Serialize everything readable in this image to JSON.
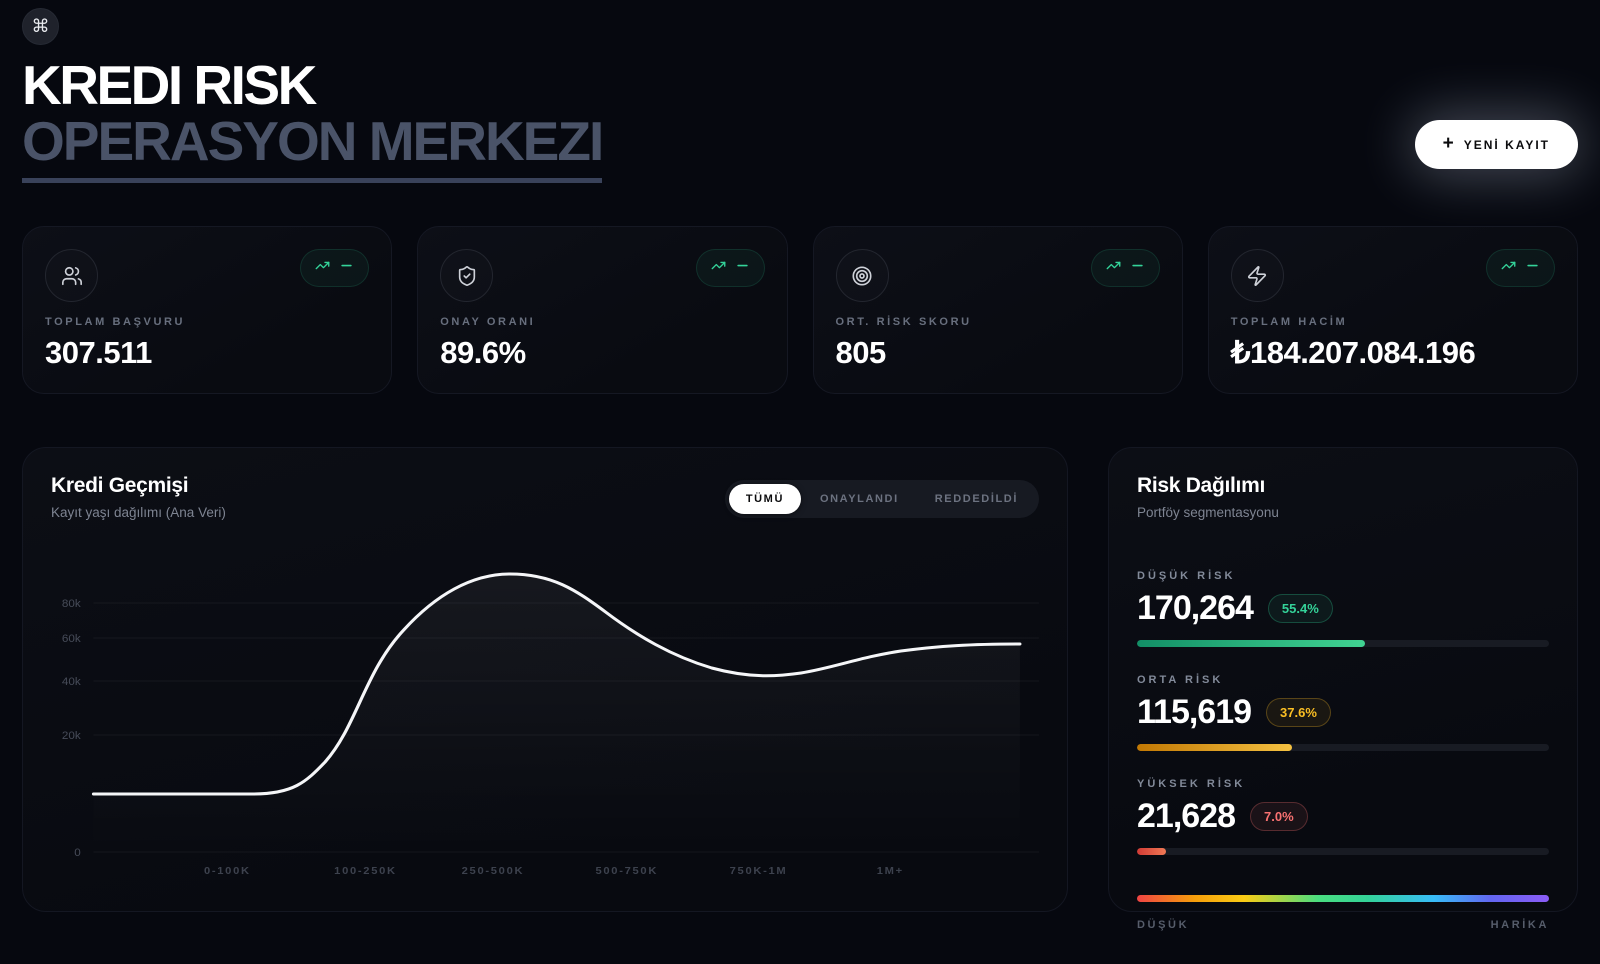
{
  "header": {
    "command_icon": "⌘",
    "title_line1": "KREDI RISK",
    "title_line2": "OPERASYON MERKEZI",
    "new_record": {
      "plus": "+",
      "label": "YENİ KAYIT"
    }
  },
  "stats": [
    {
      "icon": "users",
      "label": "TOPLAM BAŞVURU",
      "value": "307.511"
    },
    {
      "icon": "shield-check",
      "label": "ONAY ORANI",
      "value": "89.6%"
    },
    {
      "icon": "target",
      "label": "ORT. RİSK SKORU",
      "value": "805"
    },
    {
      "icon": "zap",
      "label": "TOPLAM HACİM",
      "value": "₺184.207.084.196"
    }
  ],
  "history": {
    "title": "Kredi Geçmişi",
    "subtitle": "Kayıt yaşı dağılımı (Ana Veri)",
    "tabs": [
      {
        "label": "TÜMÜ",
        "active": true
      },
      {
        "label": "ONAYLANDI",
        "active": false
      },
      {
        "label": "REDDEDİLDİ",
        "active": false
      }
    ]
  },
  "chart_data": {
    "type": "area",
    "title": "Kredi Geçmişi",
    "subtitle": "Kayıt yaşı dağılımı (Ana Veri)",
    "x_categories": [
      "0-100K",
      "100-250K",
      "250-500K",
      "500-750K",
      "750K-1M",
      "1M+"
    ],
    "y_ticks": [
      "80k",
      "60k",
      "40k",
      "20k",
      "0"
    ],
    "y_scale_note": "non-linear (sqrt-like) spacing",
    "series": [
      {
        "name": "TÜMÜ",
        "values": [
          10000,
          55000,
          88000,
          65000,
          43000,
          50000
        ]
      }
    ],
    "line_color": "#ffffff",
    "grid": "faint-horizontal",
    "legend": "none"
  },
  "risk": {
    "title": "Risk Dağılımı",
    "subtitle": "Portföy segmentasyonu",
    "segments": [
      {
        "label": "DÜŞÜK RİSK",
        "value": "170,264",
        "percent": "55.4%",
        "percent_num": 55.4,
        "color": "#34d399"
      },
      {
        "label": "ORTA RİSK",
        "value": "115,619",
        "percent": "37.6%",
        "percent_num": 37.6,
        "color": "#fbbf24"
      },
      {
        "label": "YÜKSEK RİSK",
        "value": "21,628",
        "percent": "7.0%",
        "percent_num": 7.0,
        "color": "#f87171"
      }
    ],
    "scale": {
      "left": "DÜŞÜK",
      "right": "HARİKA"
    }
  }
}
